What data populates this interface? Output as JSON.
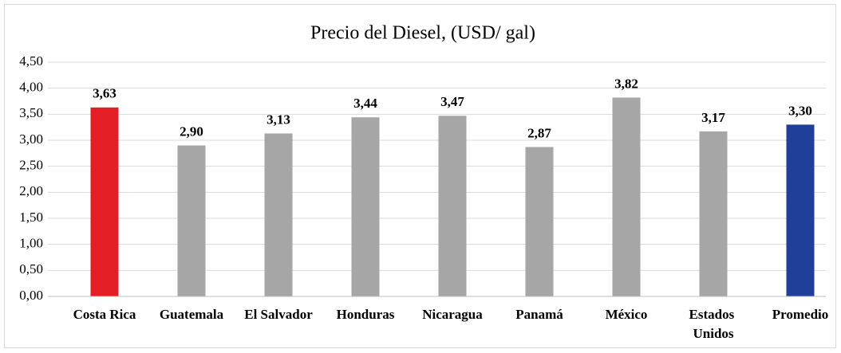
{
  "chart_data": {
    "type": "bar",
    "title": "Precio del Diesel, (USD/ gal)",
    "categories": [
      "Costa Rica",
      "Guatemala",
      "El Salvador",
      "Honduras",
      "Nicaragua",
      "Panamá",
      "México",
      "Estados Unidos",
      "Promedio"
    ],
    "values": [
      3.63,
      2.9,
      3.13,
      3.44,
      3.47,
      2.87,
      3.82,
      3.17,
      3.3
    ],
    "value_labels": [
      "3,63",
      "2,90",
      "3,13",
      "3,44",
      "3,47",
      "2,87",
      "3,82",
      "3,17",
      "3,30"
    ],
    "colors": [
      "#e31e24",
      "#a6a6a6",
      "#a6a6a6",
      "#a6a6a6",
      "#a6a6a6",
      "#a6a6a6",
      "#a6a6a6",
      "#a6a6a6",
      "#1f3f99"
    ],
    "value_label_colors": [
      "#e31e24",
      "#000000",
      "#000000",
      "#000000",
      "#000000",
      "#000000",
      "#000000",
      "#000000",
      "#1f3f99"
    ],
    "ylim": [
      0,
      4.5
    ],
    "yticks": [
      {
        "value": 0,
        "label": "0,00"
      },
      {
        "value": 0.5,
        "label": "0,50"
      },
      {
        "value": 1,
        "label": "1,00"
      },
      {
        "value": 1.5,
        "label": "1,50"
      },
      {
        "value": 2,
        "label": "2,00"
      },
      {
        "value": 2.5,
        "label": "2,50"
      },
      {
        "value": 3,
        "label": "3,00"
      },
      {
        "value": 3.5,
        "label": "3,50"
      },
      {
        "value": 4,
        "label": "4,00"
      },
      {
        "value": 4.5,
        "label": "4,50"
      }
    ],
    "grid": true
  }
}
